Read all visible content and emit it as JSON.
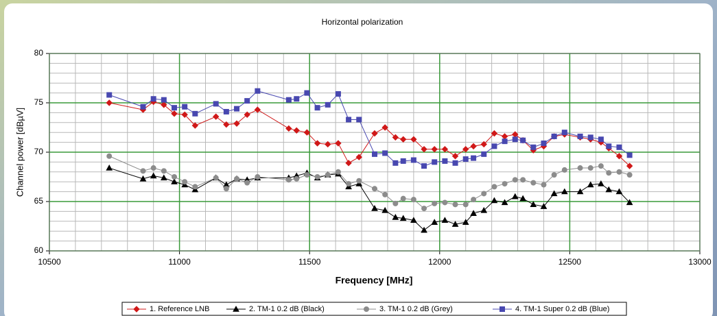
{
  "chart_data": {
    "type": "line",
    "title": "Horizontal polarization",
    "xlabel": "Frequency [MHz]",
    "ylabel": "Channel power [dBµV]",
    "x": [
      10730,
      10860,
      10900,
      10940,
      10980,
      11020,
      11060,
      11140,
      11180,
      11220,
      11260,
      11300,
      11420,
      11450,
      11490,
      11530,
      11570,
      11610,
      11650,
      11690,
      11750,
      11790,
      11830,
      11860,
      11900,
      11940,
      11980,
      12020,
      12060,
      12100,
      12130,
      12170,
      12210,
      12250,
      12290,
      12320,
      12360,
      12400,
      12440,
      12480,
      12540,
      12580,
      12620,
      12650,
      12690,
      12730
    ],
    "series": [
      {
        "name": "1. Reference LNB",
        "color": "#d01818",
        "marker": "diamond",
        "values": [
          75.0,
          74.3,
          75.1,
          74.8,
          73.9,
          73.8,
          72.7,
          73.6,
          72.8,
          72.9,
          73.8,
          74.3,
          72.4,
          72.2,
          72.0,
          70.9,
          70.8,
          70.9,
          68.9,
          69.5,
          71.9,
          72.5,
          71.5,
          71.3,
          71.3,
          70.3,
          70.3,
          70.3,
          69.6,
          70.3,
          70.6,
          70.8,
          71.9,
          71.6,
          71.8,
          71.2,
          70.2,
          70.6,
          71.6,
          71.8,
          71.5,
          71.3,
          71.0,
          70.4,
          69.6,
          68.6
        ]
      },
      {
        "name": "2. TM-1 0.2 dB (Black)",
        "color": "#000000",
        "marker": "triangle",
        "values": [
          68.4,
          67.3,
          67.6,
          67.4,
          67.0,
          66.7,
          66.2,
          67.4,
          66.7,
          67.3,
          67.2,
          67.4,
          67.4,
          67.6,
          67.9,
          67.4,
          67.7,
          67.8,
          66.5,
          66.8,
          64.3,
          64.1,
          63.4,
          63.3,
          63.1,
          62.1,
          62.9,
          63.1,
          62.7,
          62.9,
          63.8,
          64.1,
          65.1,
          64.9,
          65.5,
          65.3,
          64.7,
          64.5,
          65.8,
          66.0,
          66.0,
          66.7,
          66.8,
          66.2,
          66.0,
          64.9
        ]
      },
      {
        "name": "3. TM-1 0.2 dB (Grey)",
        "color": "#8c8c8c",
        "marker": "circle",
        "values": [
          69.6,
          68.1,
          68.4,
          68.1,
          67.5,
          67.0,
          66.5,
          67.4,
          66.3,
          67.3,
          66.9,
          67.5,
          67.2,
          67.3,
          67.7,
          67.5,
          67.7,
          68.0,
          66.8,
          67.1,
          66.3,
          65.7,
          64.8,
          65.3,
          65.2,
          64.3,
          64.8,
          64.9,
          64.7,
          64.7,
          65.2,
          65.8,
          66.5,
          66.8,
          67.2,
          67.2,
          66.9,
          66.7,
          67.7,
          68.2,
          68.4,
          68.4,
          68.6,
          67.9,
          68.0,
          67.7
        ]
      },
      {
        "name": "4. TM-1 Super 0.2 dB (Blue)",
        "color": "#4848b0",
        "marker": "square",
        "values": [
          75.8,
          74.6,
          75.4,
          75.3,
          74.5,
          74.6,
          73.9,
          74.9,
          74.1,
          74.4,
          75.2,
          76.2,
          75.3,
          75.4,
          76.0,
          74.5,
          74.8,
          75.9,
          73.3,
          73.3,
          69.8,
          69.9,
          68.9,
          69.1,
          69.2,
          68.6,
          69.0,
          69.1,
          68.9,
          69.3,
          69.4,
          69.8,
          70.6,
          71.1,
          71.3,
          71.2,
          70.5,
          70.9,
          71.6,
          72.0,
          71.6,
          71.5,
          71.3,
          70.6,
          70.5,
          69.7
        ]
      }
    ],
    "xlim": [
      10500,
      13000
    ],
    "xticks": [
      10500,
      11000,
      11500,
      12000,
      12500,
      13000
    ],
    "ylim": [
      60,
      80
    ],
    "yticks": [
      60,
      65,
      70,
      75,
      80
    ],
    "grid": true,
    "legend": "bottom"
  }
}
